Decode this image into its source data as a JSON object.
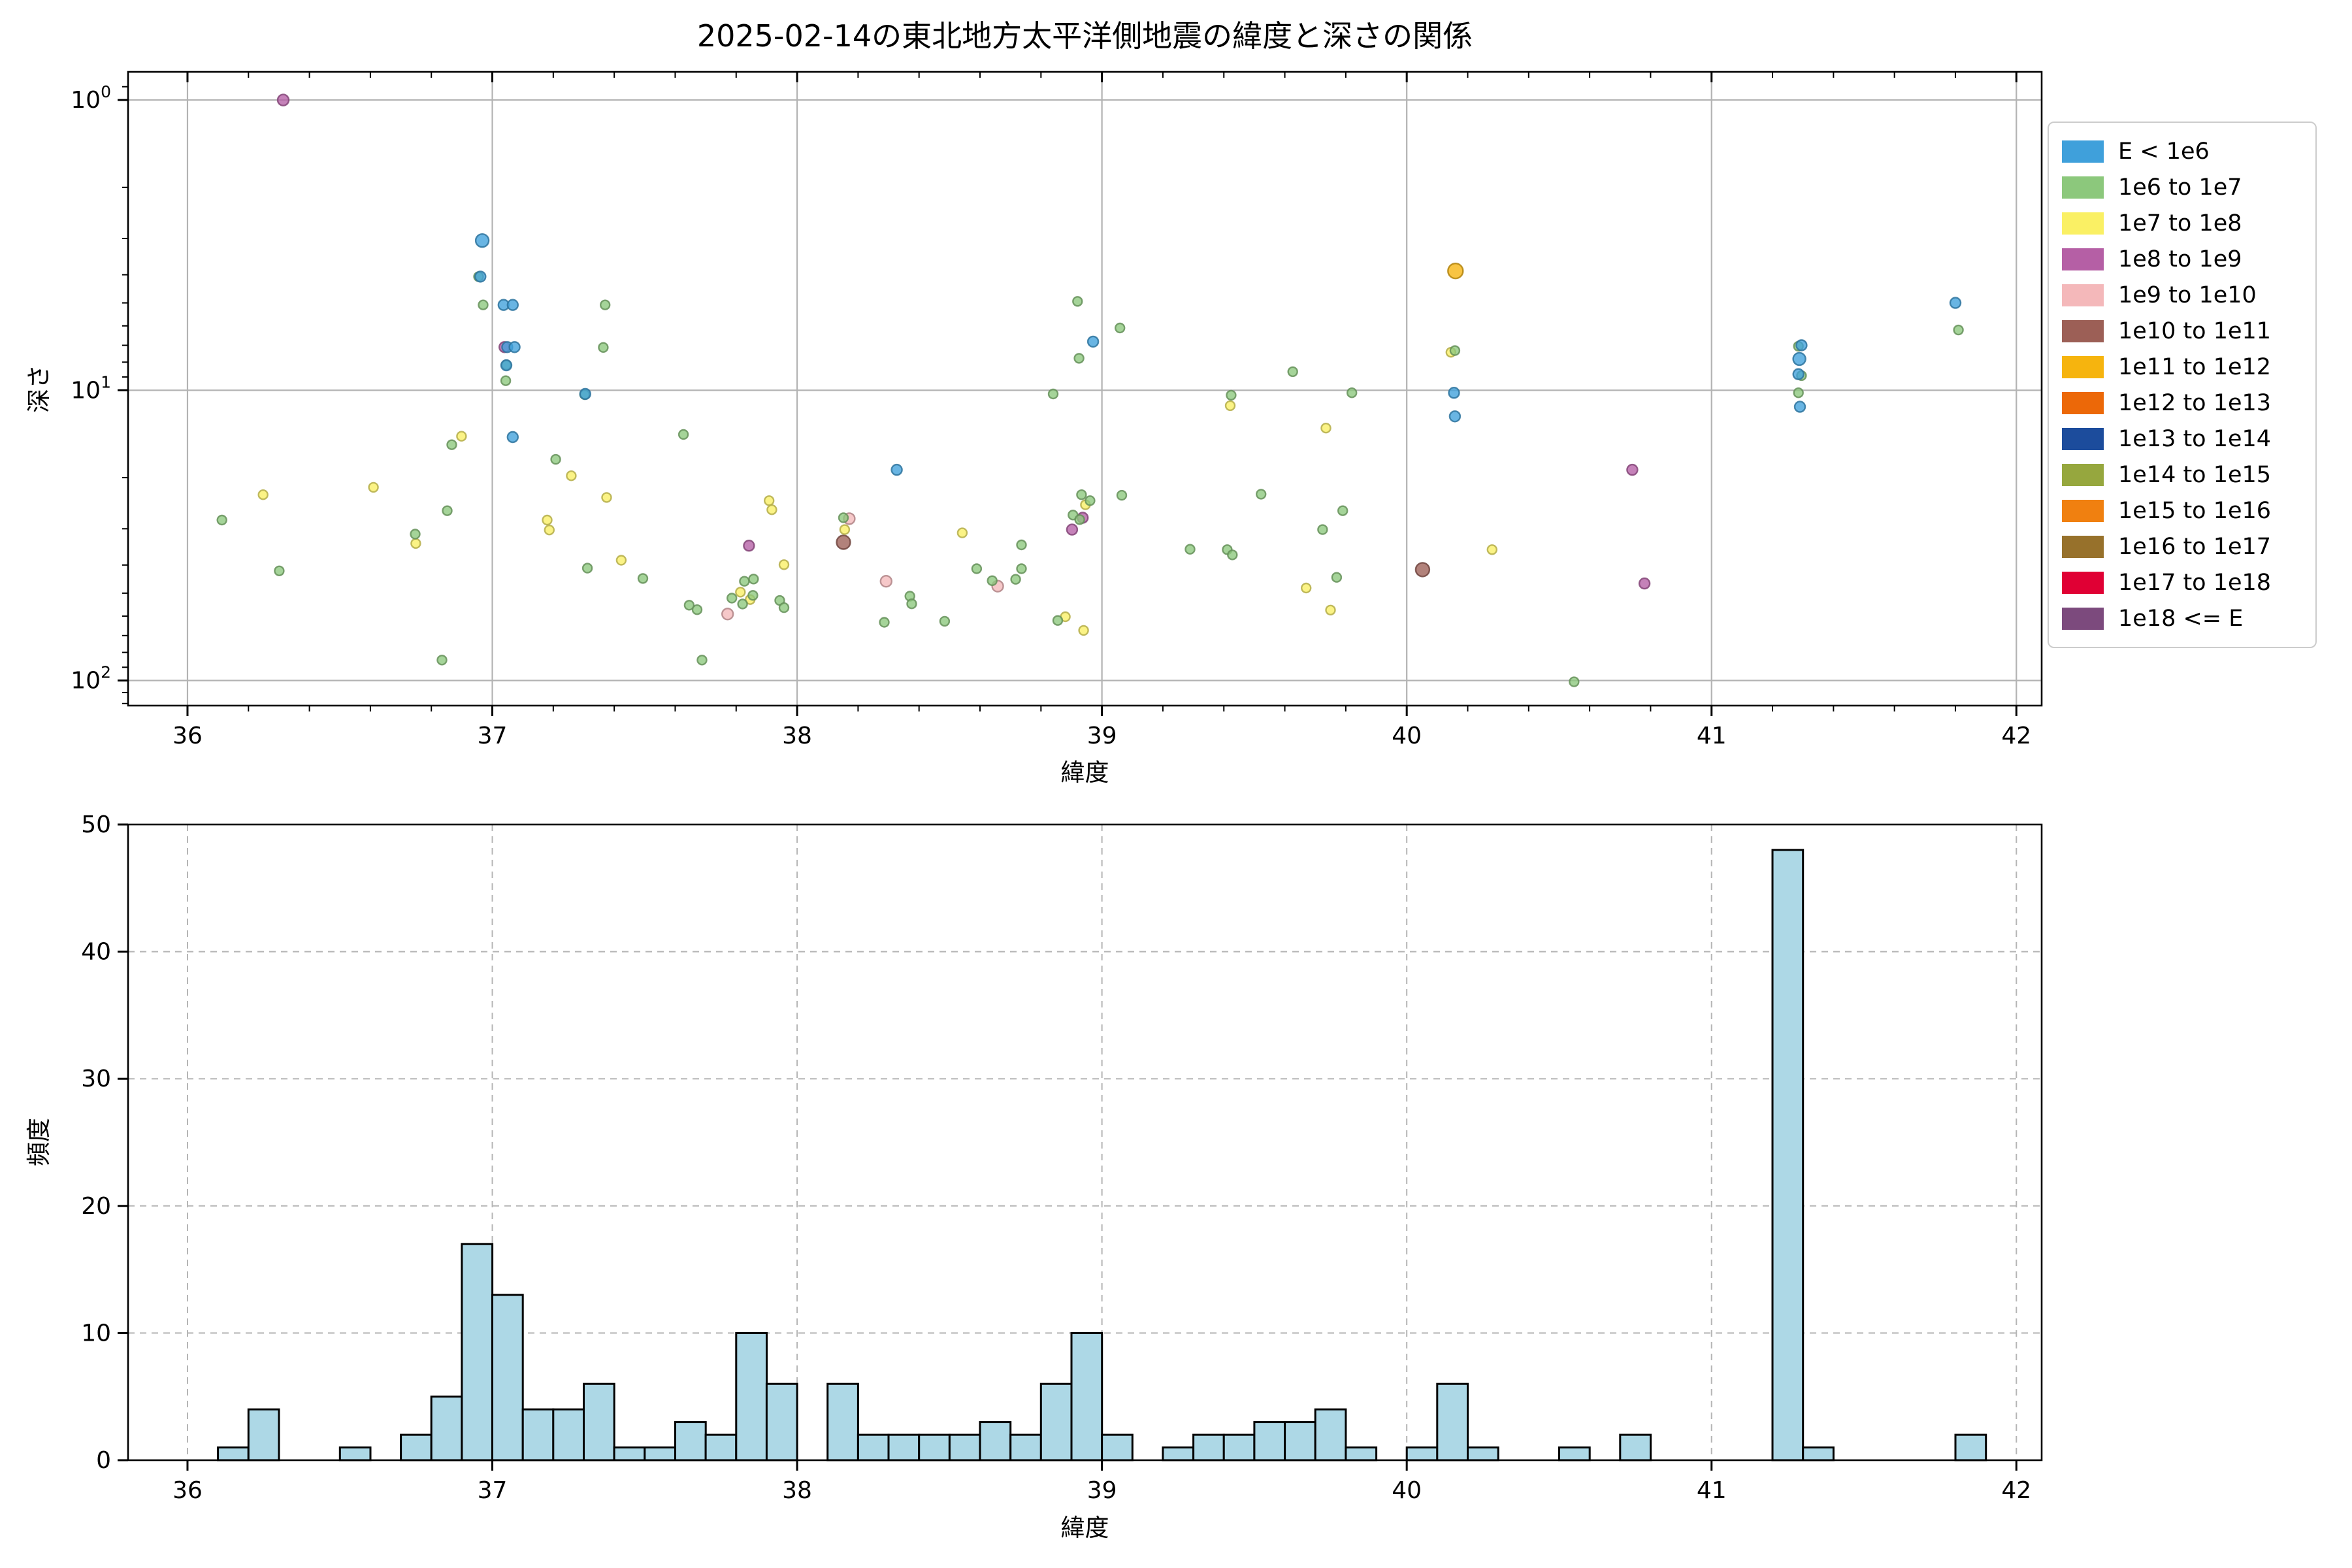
{
  "figure": {
    "title": "2025-02-14の東北地方太平洋側地震の緯度と深さの関係",
    "background": "#ffffff"
  },
  "legend": {
    "position": "upper-right-outside",
    "items": [
      {
        "label": "E < 1e6",
        "color": "#3FA0DB"
      },
      {
        "label": "1e6 to 1e7",
        "color": "#8CC87C"
      },
      {
        "label": "1e7 to 1e8",
        "color": "#FAF064"
      },
      {
        "label": "1e8 to 1e9",
        "color": "#B55FA5"
      },
      {
        "label": "1e9 to 1e10",
        "color": "#F4B8BA"
      },
      {
        "label": "1e10 to 1e11",
        "color": "#9C5F56"
      },
      {
        "label": "1e11 to 1e12",
        "color": "#F6B40E"
      },
      {
        "label": "1e12 to 1e13",
        "color": "#EC6808"
      },
      {
        "label": "1e13 to 1e14",
        "color": "#1C4C9C"
      },
      {
        "label": "1e14 to 1e15",
        "color": "#96A73E"
      },
      {
        "label": "1e15 to 1e16",
        "color": "#F08010"
      },
      {
        "label": "1e16 to 1e17",
        "color": "#97712B"
      },
      {
        "label": "1e17 to 1e18",
        "color": "#E00034"
      },
      {
        "label": "1e18 <= E",
        "color": "#7C4A7D"
      }
    ]
  },
  "chart_data": [
    {
      "type": "scatter",
      "xlabel": "緯度",
      "ylabel": "深さ",
      "xlim": [
        35.805,
        42.083
      ],
      "ylim": [
        122,
        0.8
      ],
      "yscale": "log",
      "y_inverted": true,
      "xticks": [
        36,
        37,
        38,
        39,
        40,
        41,
        42
      ],
      "yticks": [
        {
          "value": 1,
          "base": "10",
          "sup": "0"
        },
        {
          "value": 10,
          "base": "10",
          "sup": "1"
        },
        {
          "value": 100,
          "base": "10",
          "sup": "2"
        }
      ],
      "y_minor_ticks": [
        0.9,
        2,
        3,
        4,
        5,
        6,
        7,
        8,
        9,
        20,
        30,
        40,
        50,
        60,
        70,
        80,
        90,
        110,
        120
      ],
      "x_minor_step": 0.2,
      "grid": "solid",
      "grid_color": "#b3b3b3",
      "marker_alpha": 0.78,
      "series": [
        {
          "name": "E < 1e6",
          "color": "#3FA0DB",
          "diameter": 16,
          "points": [
            [
              36.967,
              3.05,
              20
            ],
            [
              36.961,
              4.06
            ],
            [
              37.037,
              5.08
            ],
            [
              37.067,
              5.08
            ],
            [
              37.049,
              7.1
            ],
            [
              37.073,
              7.1
            ],
            [
              37.046,
              8.2
            ],
            [
              37.067,
              14.5
            ],
            [
              37.305,
              10.3
            ],
            [
              38.327,
              18.8
            ],
            [
              38.971,
              6.8
            ],
            [
              40.155,
              10.2
            ],
            [
              40.158,
              12.3
            ],
            [
              41.295,
              7.0
            ],
            [
              41.288,
              7.8,
              19
            ],
            [
              41.285,
              8.8
            ],
            [
              41.29,
              11.4
            ],
            [
              41.8,
              5.0
            ]
          ]
        },
        {
          "name": "1e6 to 1e7",
          "color": "#8CC87C",
          "diameter": 14,
          "points": [
            [
              36.955,
              4.06
            ],
            [
              36.97,
              5.08
            ],
            [
              37.37,
              5.08
            ],
            [
              37.364,
              7.12
            ],
            [
              37.046,
              8.19
            ],
            [
              37.044,
              9.27
            ],
            [
              37.303,
              10.35
            ],
            [
              36.867,
              15.4
            ],
            [
              37.627,
              14.2
            ],
            [
              37.208,
              17.3
            ],
            [
              36.852,
              26
            ],
            [
              36.113,
              28
            ],
            [
              36.747,
              31.3
            ],
            [
              36.301,
              41.9
            ],
            [
              36.835,
              85
            ],
            [
              37.312,
              41
            ],
            [
              37.494,
              44.5
            ],
            [
              37.646,
              55
            ],
            [
              37.672,
              57
            ],
            [
              37.688,
              85
            ],
            [
              37.827,
              45.5
            ],
            [
              37.857,
              44.7
            ],
            [
              37.786,
              52
            ],
            [
              37.821,
              54.5
            ],
            [
              37.855,
              50.9
            ],
            [
              37.943,
              53
            ],
            [
              37.957,
              56.1
            ],
            [
              38.152,
              27.5
            ],
            [
              38.736,
              34.1
            ],
            [
              38.589,
              41.2
            ],
            [
              38.736,
              41.2
            ],
            [
              38.717,
              44.8
            ],
            [
              38.64,
              45.3
            ],
            [
              38.37,
              51.2
            ],
            [
              38.376,
              54.4
            ],
            [
              38.286,
              63
            ],
            [
              38.484,
              62.5
            ],
            [
              38.855,
              62.1
            ],
            [
              38.84,
              10.3
            ],
            [
              38.92,
              4.94
            ],
            [
              39.059,
              6.1
            ],
            [
              38.925,
              7.76
            ],
            [
              39.626,
              8.63
            ],
            [
              39.82,
              10.2
            ],
            [
              39.424,
              10.4
            ],
            [
              38.933,
              22.9
            ],
            [
              38.961,
              24
            ],
            [
              39.065,
              23
            ],
            [
              38.905,
              26.9
            ],
            [
              38.927,
              27.9
            ],
            [
              39.522,
              22.8
            ],
            [
              39.79,
              26
            ],
            [
              39.289,
              35.3
            ],
            [
              39.411,
              35.4
            ],
            [
              39.428,
              36.9
            ],
            [
              39.724,
              30.2
            ],
            [
              39.77,
              44.1
            ],
            [
              40.158,
              7.3
            ],
            [
              40.549,
              101
            ],
            [
              41.285,
              7.05
            ],
            [
              41.295,
              8.9
            ],
            [
              41.285,
              10.2
            ],
            [
              41.81,
              6.2
            ]
          ]
        },
        {
          "name": "1e7 to 1e8",
          "color": "#FAF064",
          "diameter": 14,
          "points": [
            [
              36.899,
              14.4
            ],
            [
              36.61,
              21.6
            ],
            [
              36.248,
              22.9
            ],
            [
              36.749,
              33.7
            ],
            [
              37.259,
              19.7
            ],
            [
              37.18,
              28
            ],
            [
              37.187,
              30.3
            ],
            [
              37.375,
              23.4
            ],
            [
              37.423,
              38.5
            ],
            [
              37.908,
              24
            ],
            [
              37.917,
              25.8
            ],
            [
              37.957,
              39.9
            ],
            [
              37.814,
              49.6
            ],
            [
              37.846,
              52.6
            ],
            [
              38.156,
              30.2
            ],
            [
              38.542,
              31
            ],
            [
              38.88,
              60.3
            ],
            [
              38.94,
              67.2
            ],
            [
              38.946,
              24.8
            ],
            [
              39.421,
              11.3
            ],
            [
              39.735,
              13.5
            ],
            [
              39.67,
              48
            ],
            [
              39.75,
              57.2
            ],
            [
              40.28,
              35.4
            ],
            [
              40.145,
              7.4
            ]
          ]
        },
        {
          "name": "1e8 to 1e9",
          "color": "#B55FA5",
          "diameter": 16,
          "points": [
            [
              36.314,
              1.0,
              17
            ],
            [
              37.04,
              7.1
            ],
            [
              37.842,
              34.3
            ],
            [
              38.937,
              27.5
            ],
            [
              38.902,
              30.2
            ],
            [
              40.74,
              18.8
            ],
            [
              40.78,
              46.3
            ]
          ]
        },
        {
          "name": "1e9 to 1e10",
          "color": "#F4B8BA",
          "diameter": 17,
          "points": [
            [
              37.772,
              59
            ],
            [
              38.171,
              27.7
            ],
            [
              38.658,
              47.3
            ],
            [
              38.292,
              45.5
            ]
          ]
        },
        {
          "name": "1e10 to 1e11",
          "color": "#9C5F56",
          "diameter": 21,
          "points": [
            [
              38.152,
              33.4
            ],
            [
              40.052,
              41.5
            ]
          ]
        },
        {
          "name": "1e11 to 1e12",
          "color": "#F6B40E",
          "diameter": 23,
          "points": [
            [
              40.16,
              3.88
            ]
          ]
        }
      ]
    },
    {
      "type": "bar",
      "xlabel": "緯度",
      "ylabel": "頻度",
      "xlim": [
        35.805,
        42.083
      ],
      "ylim": [
        0,
        50
      ],
      "xticks": [
        36,
        37,
        38,
        39,
        40,
        41,
        42
      ],
      "yticks": [
        0,
        10,
        20,
        30,
        40,
        50
      ],
      "grid": "dashed",
      "grid_color": "#b5b5b5",
      "bin_width": 0.1,
      "bar_color": "#ADD8E6",
      "bar_edge_color": "#000000",
      "bars": [
        [
          36.1,
          1
        ],
        [
          36.2,
          4
        ],
        [
          36.5,
          1
        ],
        [
          36.7,
          2
        ],
        [
          36.8,
          5
        ],
        [
          36.9,
          17
        ],
        [
          37.0,
          13
        ],
        [
          37.1,
          4
        ],
        [
          37.2,
          4
        ],
        [
          37.3,
          6
        ],
        [
          37.4,
          1
        ],
        [
          37.5,
          1
        ],
        [
          37.6,
          3
        ],
        [
          37.7,
          2
        ],
        [
          37.8,
          10
        ],
        [
          37.9,
          6
        ],
        [
          38.1,
          6
        ],
        [
          38.2,
          2
        ],
        [
          38.3,
          2
        ],
        [
          38.4,
          2
        ],
        [
          38.5,
          2
        ],
        [
          38.6,
          3
        ],
        [
          38.7,
          2
        ],
        [
          38.8,
          6
        ],
        [
          38.9,
          10
        ],
        [
          39.0,
          2
        ],
        [
          39.2,
          1
        ],
        [
          39.3,
          2
        ],
        [
          39.4,
          2
        ],
        [
          39.5,
          3
        ],
        [
          39.6,
          3
        ],
        [
          39.7,
          4
        ],
        [
          39.8,
          1
        ],
        [
          40.0,
          1
        ],
        [
          40.1,
          6
        ],
        [
          40.2,
          1
        ],
        [
          40.5,
          1
        ],
        [
          40.7,
          2
        ],
        [
          41.2,
          48
        ],
        [
          41.3,
          1
        ],
        [
          41.8,
          2
        ]
      ]
    }
  ]
}
